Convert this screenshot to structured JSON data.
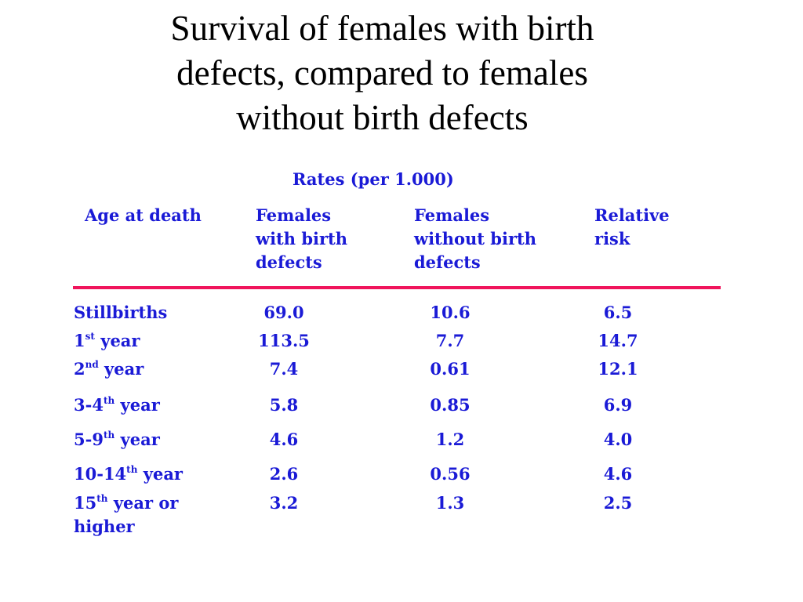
{
  "title": {
    "line1": "Survival of females with birth",
    "line2": "defects, compared to females",
    "line3": "without birth defects"
  },
  "table": {
    "group_header": "Rates (per 1.000)",
    "headers": {
      "age": "Age at death",
      "with_defects": [
        "Females",
        "with birth",
        "defects"
      ],
      "without_defects": [
        "Females",
        "without birth",
        "defects"
      ],
      "relative_risk": [
        "Relative",
        "risk"
      ]
    },
    "rows": [
      {
        "age_pre": "Stillbirths",
        "sup": "",
        "age_post": "",
        "age_line2": "",
        "with": "69.0",
        "without": "10.6",
        "rr": "6.5"
      },
      {
        "age_pre": "1",
        "sup": "st",
        "age_post": " year",
        "age_line2": "",
        "with": "113.5",
        "without": "7.7",
        "rr": "14.7"
      },
      {
        "age_pre": "2",
        "sup": "nd",
        "age_post": " year",
        "age_line2": "",
        "with": "7.4",
        "without": "0.61",
        "rr": "12.1"
      },
      {
        "age_pre": "3-4",
        "sup": "th",
        "age_post": " year",
        "age_line2": "",
        "with": "5.8",
        "without": "0.85",
        "rr": "6.9"
      },
      {
        "age_pre": "5-9",
        "sup": "th",
        "age_post": " year",
        "age_line2": "",
        "with": "4.6",
        "without": "1.2",
        "rr": "4.0"
      },
      {
        "age_pre": "10-14",
        "sup": "th",
        "age_post": " year",
        "age_line2": "",
        "with": "2.6",
        "without": "0.56",
        "rr": "4.6"
      },
      {
        "age_pre": "15",
        "sup": "th",
        "age_post": " year or",
        "age_line2": "higher",
        "with": "3.2",
        "without": "1.3",
        "rr": "2.5"
      }
    ]
  },
  "colors": {
    "text": "#1a1ad6",
    "divider": "#f0145c",
    "title": "#000000"
  }
}
